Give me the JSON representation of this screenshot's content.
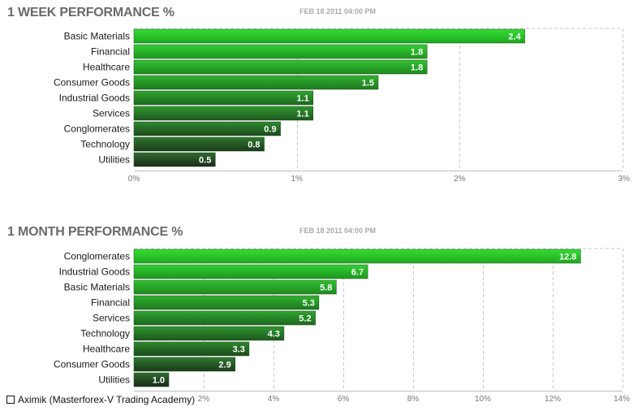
{
  "charts": {
    "week": {
      "title": "1 WEEK PERFORMANCE %",
      "timestamp": "FEB 18 2011 04:00 PM"
    },
    "month": {
      "title": "1 MONTH PERFORMANCE %",
      "timestamp": "FEB 18 2011 04:00 PM"
    }
  },
  "footer": {
    "text": "Aximik (Masterforex-V Trading Academy)",
    "icon": "checkbox-square-icon"
  },
  "colors": {
    "bar_top": "#33dd33",
    "bar_bottom": "#1a2a1a",
    "grid": "#c8c8c8"
  },
  "chart_data": [
    {
      "type": "bar",
      "orientation": "horizontal",
      "title": "1 WEEK PERFORMANCE %",
      "categories": [
        "Basic Materials",
        "Financial",
        "Healthcare",
        "Consumer Goods",
        "Industrial Goods",
        "Services",
        "Conglomerates",
        "Technology",
        "Utilities"
      ],
      "values": [
        2.4,
        1.8,
        1.8,
        1.5,
        1.1,
        1.1,
        0.9,
        0.8,
        0.5
      ],
      "value_labels": [
        "2.4",
        "1.8",
        "1.8",
        "1.5",
        "1.1",
        "1.1",
        "0.9",
        "0.8",
        "0.5"
      ],
      "xlim": [
        0,
        3
      ],
      "xticks": [
        0,
        1,
        2,
        3
      ],
      "xtick_labels": [
        "0%",
        "1%",
        "2%",
        "3%"
      ],
      "grid": true
    },
    {
      "type": "bar",
      "orientation": "horizontal",
      "title": "1 MONTH PERFORMANCE %",
      "categories": [
        "Conglomerates",
        "Industrial Goods",
        "Basic Materials",
        "Financial",
        "Services",
        "Technology",
        "Healthcare",
        "Consumer Goods",
        "Utilities"
      ],
      "values": [
        12.8,
        6.7,
        5.8,
        5.3,
        5.2,
        4.3,
        3.3,
        2.9,
        1.0
      ],
      "value_labels": [
        "12.8",
        "6.7",
        "5.8",
        "5.3",
        "5.2",
        "4.3",
        "3.3",
        "2.9",
        "1.0"
      ],
      "xlim": [
        0,
        14
      ],
      "xticks": [
        2,
        4,
        6,
        8,
        10,
        12,
        14
      ],
      "xtick_labels": [
        "2%",
        "4%",
        "6%",
        "8%",
        "10%",
        "12%",
        "14%"
      ],
      "grid": true
    }
  ]
}
